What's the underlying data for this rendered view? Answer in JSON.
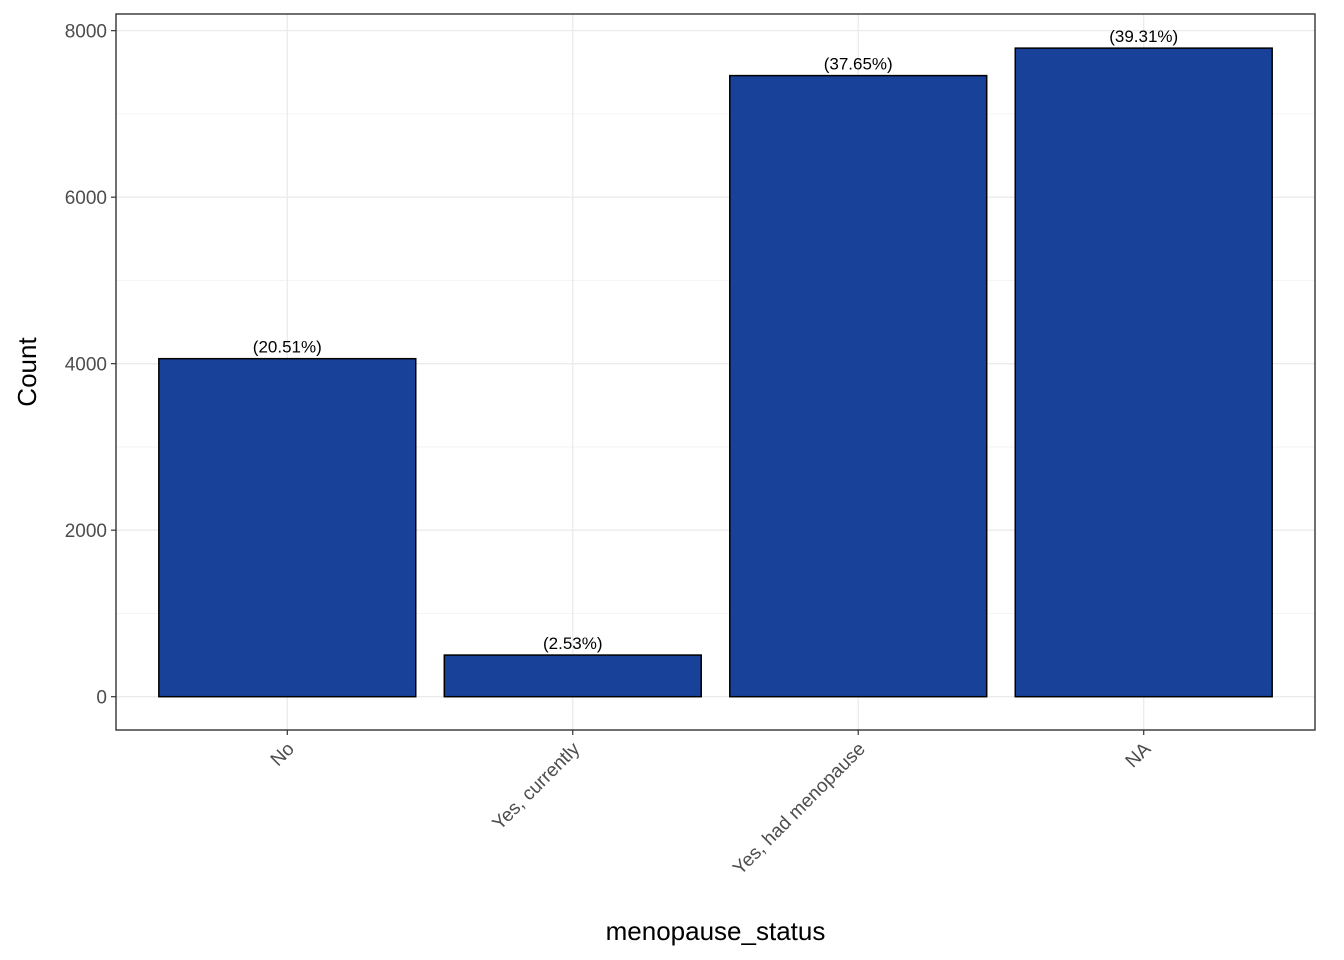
{
  "chart_data": {
    "type": "bar",
    "categories": [
      "No",
      "Yes, currently",
      "Yes, had menopause",
      "NA"
    ],
    "values": [
      4060,
      500,
      7460,
      7790
    ],
    "data_labels": [
      "(20.51%)",
      "(2.53%)",
      "(37.65%)",
      "(39.31%)"
    ],
    "title": "",
    "xlabel": "menopause_status",
    "ylabel": "Count",
    "ylim": [
      -400,
      8200
    ],
    "yticks": [
      0,
      2000,
      4000,
      6000,
      8000
    ],
    "ytick_labels": [
      "0",
      "2000",
      "4000",
      "6000",
      "8000"
    ],
    "grid": true,
    "legend": "none",
    "x_tick_rotation_deg": 45
  },
  "colors": {
    "bar_fill": "#18419A",
    "bar_stroke": "#000000",
    "grid_major": "#EBEBEB",
    "grid_minor": "#F2F2F2",
    "panel_border": "#333333"
  }
}
